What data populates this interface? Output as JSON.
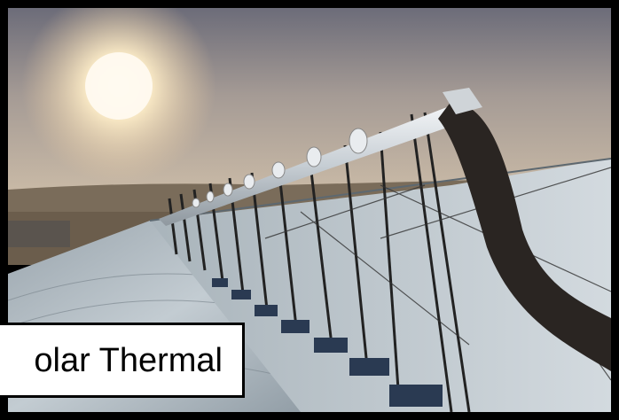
{
  "caption": {
    "text": "olar Thermal"
  },
  "colors": {
    "sky_top": "#6f6f7c",
    "sky_haze": "#c9b9a6",
    "sun": "#fff4d8",
    "mirror": "#aeb8c0",
    "ground": "#6b5d4c",
    "tube": "#d8dde2",
    "pipe": "#2a2522"
  }
}
